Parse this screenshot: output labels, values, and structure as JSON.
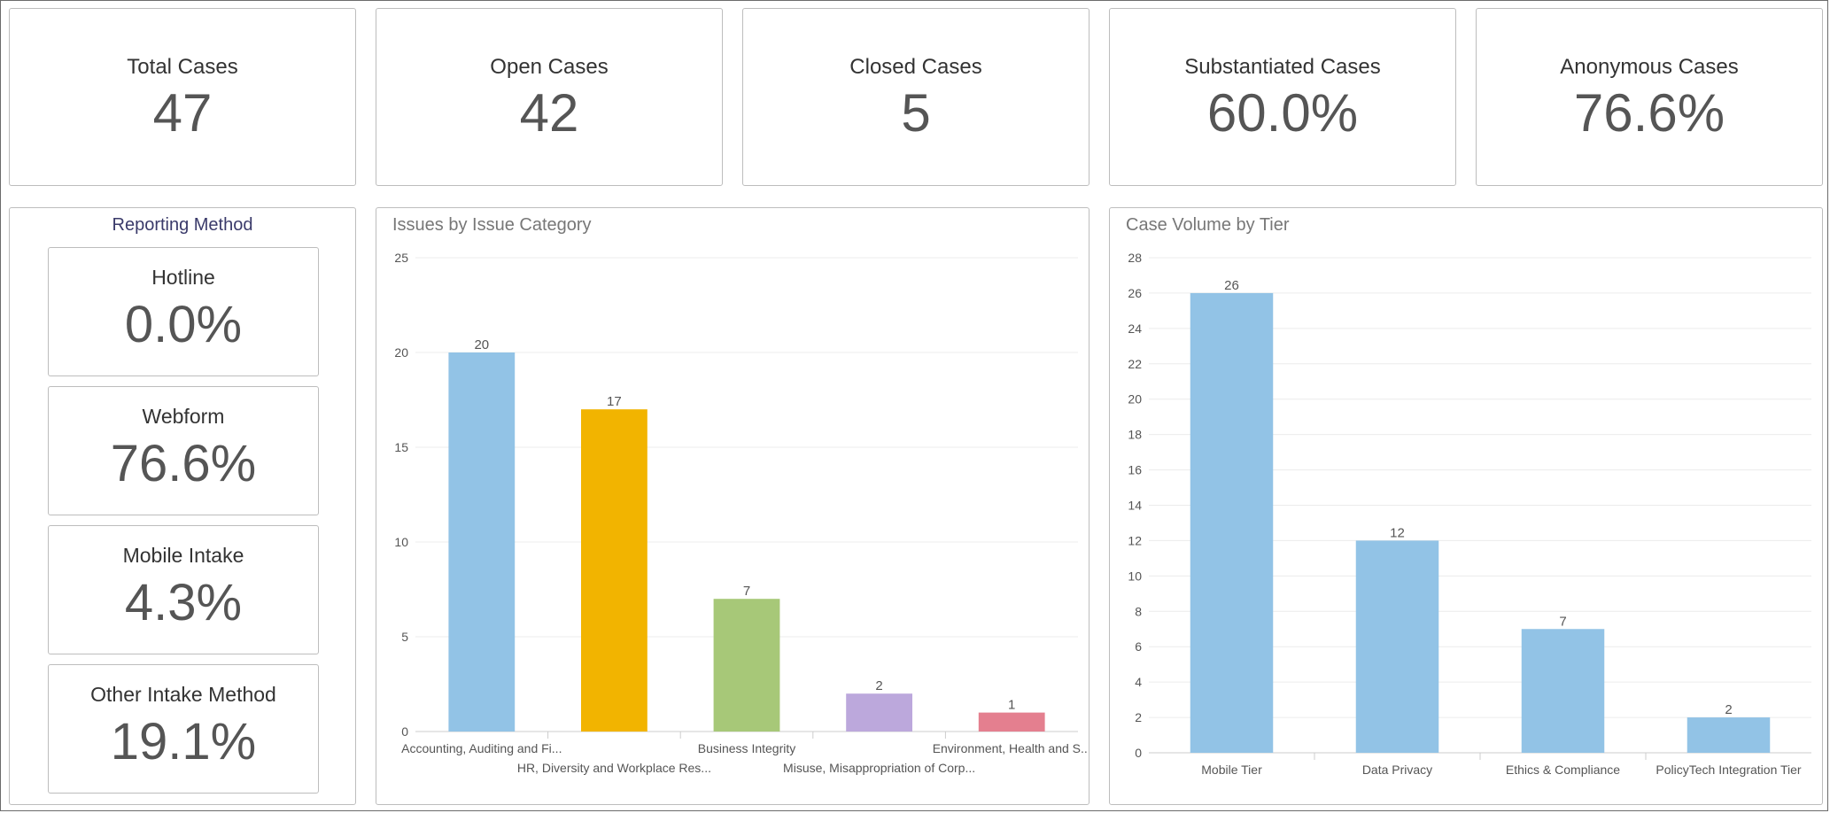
{
  "kpis": [
    {
      "label": "Total Cases",
      "value": "47"
    },
    {
      "label": "Open Cases",
      "value": "42"
    },
    {
      "label": "Closed Cases",
      "value": "5"
    },
    {
      "label": "Substantiated Cases",
      "value": "60.0%"
    },
    {
      "label": "Anonymous Cases",
      "value": "76.6%"
    }
  ],
  "reporting_method": {
    "title": "Reporting Method",
    "items": [
      {
        "label": "Hotline",
        "value": "0.0%"
      },
      {
        "label": "Webform",
        "value": "76.6%"
      },
      {
        "label": "Mobile Intake",
        "value": "4.3%"
      },
      {
        "label": "Other Intake Method",
        "value": "19.1%"
      }
    ]
  },
  "chart_data": [
    {
      "type": "bar",
      "title": "Issues by Issue Category",
      "categories": [
        "Accounting, Auditing and Fi...",
        "HR, Diversity and Workplace Res...",
        "Business Integrity",
        "Misuse, Misappropriation of Corp...",
        "Environment, Health and S..."
      ],
      "values": [
        20,
        17,
        7,
        2,
        1
      ],
      "colors": [
        "#92c3e6",
        "#f2b400",
        "#a7c878",
        "#bca8dc",
        "#e47f8f"
      ],
      "ylim": [
        0,
        25
      ],
      "yticks": [
        0,
        5,
        10,
        15,
        20,
        25
      ],
      "grid": true,
      "legend": "none"
    },
    {
      "type": "bar",
      "title": "Case Volume by Tier",
      "categories": [
        "Mobile Tier",
        "Data Privacy",
        "Ethics & Compliance",
        "PolicyTech Integration Tier"
      ],
      "values": [
        26,
        12,
        7,
        2
      ],
      "colors": [
        "#92c3e6",
        "#92c3e6",
        "#92c3e6",
        "#92c3e6"
      ],
      "ylim": [
        0,
        28
      ],
      "yticks": [
        0,
        2,
        4,
        6,
        8,
        10,
        12,
        14,
        16,
        18,
        20,
        22,
        24,
        26,
        28
      ],
      "grid": true,
      "legend": "none"
    }
  ]
}
